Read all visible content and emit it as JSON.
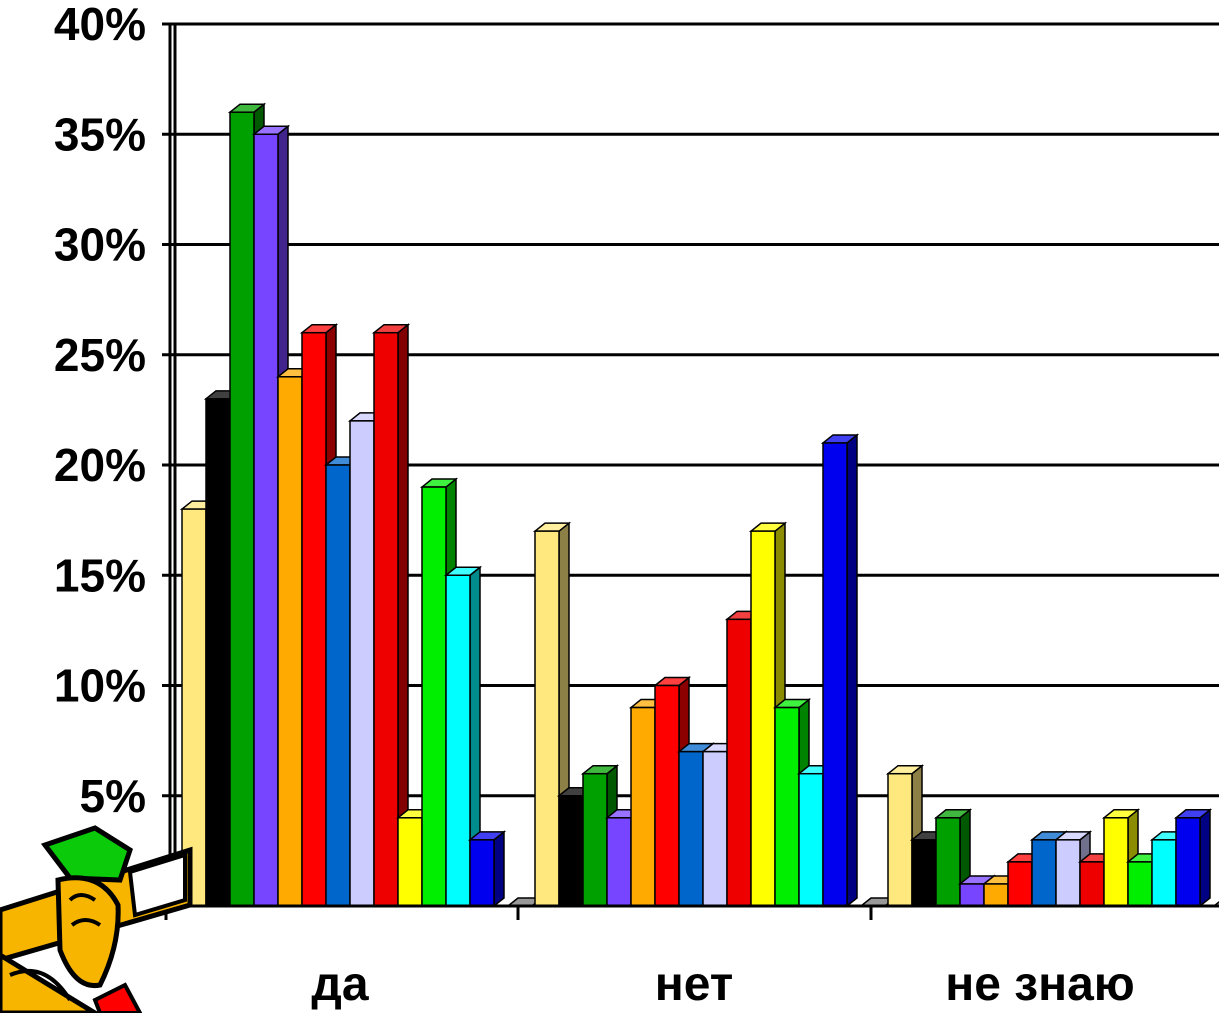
{
  "chart_data": {
    "type": "bar",
    "title": "",
    "xlabel": "",
    "ylabel": "",
    "ylim": [
      0,
      0.4
    ],
    "yticks": [
      {
        "value": 0.4,
        "label": "40%"
      },
      {
        "value": 0.35,
        "label": "35%"
      },
      {
        "value": 0.3,
        "label": "30%"
      },
      {
        "value": 0.25,
        "label": "25%"
      },
      {
        "value": 0.2,
        "label": "20%"
      },
      {
        "value": 0.15,
        "label": "15%"
      },
      {
        "value": 0.1,
        "label": "10%"
      },
      {
        "value": 0.05,
        "label": "5%"
      }
    ],
    "grid": true,
    "legend": "none",
    "categories": [
      "да",
      "нет",
      "не знаю"
    ],
    "series": [
      {
        "color": "#FFE97F",
        "values": [
          0.18,
          0.17,
          0.06
        ]
      },
      {
        "color": "#000000",
        "values": [
          0.23,
          0.05,
          0.03
        ]
      },
      {
        "color": "#00A000",
        "values": [
          0.36,
          0.06,
          0.04
        ]
      },
      {
        "color": "#7744FF",
        "values": [
          0.35,
          0.04,
          0.01
        ]
      },
      {
        "color": "#FFAA00",
        "values": [
          0.24,
          0.09,
          0.01
        ]
      },
      {
        "color": "#FF0000",
        "values": [
          0.26,
          0.1,
          0.02
        ]
      },
      {
        "color": "#0066CC",
        "values": [
          0.2,
          0.07,
          0.03
        ]
      },
      {
        "color": "#CCCCFF",
        "values": [
          0.22,
          0.07,
          0.03
        ]
      },
      {
        "color": "#EE0000",
        "values": [
          0.26,
          0.13,
          0.02
        ]
      },
      {
        "color": "#FFFF00",
        "values": [
          0.04,
          0.17,
          0.04
        ]
      },
      {
        "color": "#00EE00",
        "values": [
          0.19,
          0.09,
          0.02
        ]
      },
      {
        "color": "#00FFFF",
        "values": [
          0.15,
          0.06,
          0.03
        ]
      },
      {
        "color": "#0000EE",
        "values": [
          0.03,
          0.21,
          0.04
        ]
      }
    ]
  }
}
